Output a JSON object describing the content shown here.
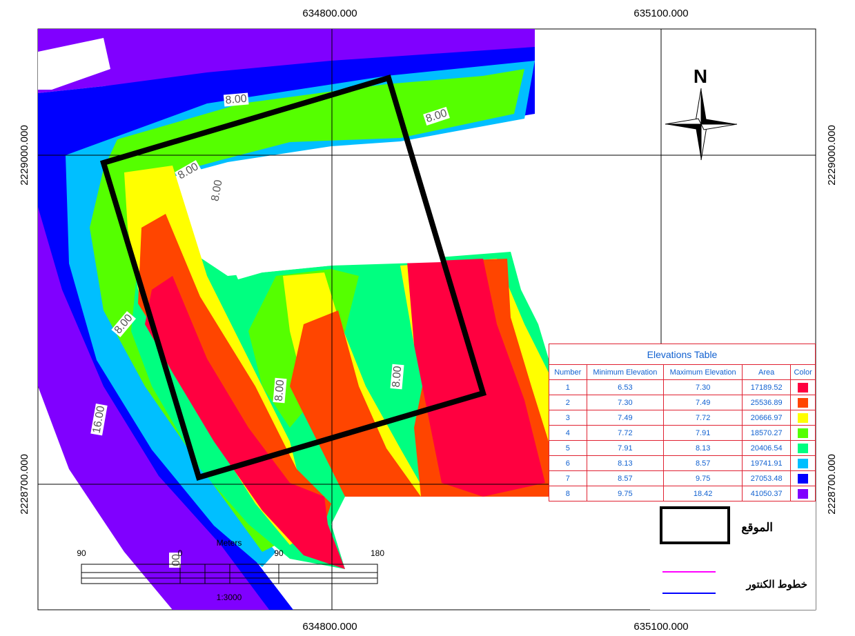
{
  "map": {
    "coordinates": {
      "top": [
        "634800.000",
        "635100.000"
      ],
      "bottom": [
        "634800.000",
        "635100.000"
      ],
      "left": [
        "2229000.000",
        "2228700.000"
      ],
      "right": [
        "2229000.000",
        "2228700.000"
      ]
    },
    "contour_labels": [
      "8.00",
      "8.00",
      "8.00",
      "8.00",
      "8.00",
      "8.00",
      "8.00",
      "16.00",
      "00"
    ],
    "north": "N",
    "table": {
      "title": "Elevations Table",
      "headers": [
        "Number",
        "Minimum Elevation",
        "Maximum Elevation",
        "Area",
        "Color"
      ],
      "rows": [
        [
          "1",
          "6.53",
          "7.30",
          "17189.52"
        ],
        [
          "2",
          "7.30",
          "7.49",
          "25536.89"
        ],
        [
          "3",
          "7.49",
          "7.72",
          "20666.97"
        ],
        [
          "4",
          "7.72",
          "7.91",
          "18570.27"
        ],
        [
          "5",
          "7.91",
          "8.13",
          "20406.54"
        ],
        [
          "6",
          "8.13",
          "8.57",
          "19741.91"
        ],
        [
          "7",
          "8.57",
          "9.75",
          "27053.48"
        ],
        [
          "8",
          "9.75",
          "18.42",
          "41050.37"
        ]
      ],
      "swatch_colors": [
        "#ff0040",
        "#ff4500",
        "#ffff00",
        "#55ff00",
        "#00ff80",
        "#00bfff",
        "#0000ff",
        "#8000ff"
      ]
    },
    "scale_bar": {
      "ticks": [
        "90",
        "0",
        "90",
        "180"
      ],
      "unit": "Meters",
      "ratio": "1:3000"
    },
    "legend": {
      "site": "الموقع",
      "contours": "خطوط الكنتور"
    }
  }
}
